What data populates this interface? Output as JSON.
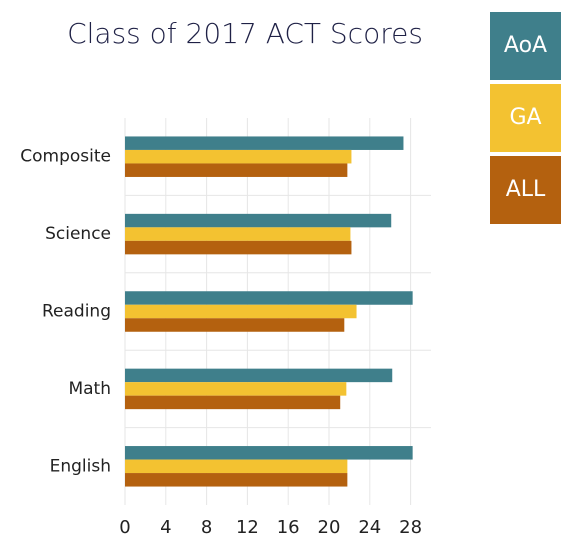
{
  "chart_data": {
    "type": "barh",
    "title": "Class of 2017 ACT Scores",
    "categories": [
      "Composite",
      "Science",
      "Reading",
      "Math",
      "English"
    ],
    "series": [
      {
        "name": "AoA",
        "color": "#3f7f8b",
        "values": [
          27.3,
          26.1,
          28.2,
          26.2,
          28.2
        ]
      },
      {
        "name": "GA",
        "color": "#f3c231",
        "values": [
          22.2,
          22.1,
          22.7,
          21.7,
          21.8
        ]
      },
      {
        "name": "ALL",
        "color": "#b4610f",
        "values": [
          21.8,
          22.2,
          21.5,
          21.1,
          21.8
        ]
      }
    ],
    "xlim": [
      0,
      30
    ],
    "xticks": [
      0,
      4,
      8,
      12,
      16,
      20,
      24,
      28
    ],
    "grid": true,
    "legend": "upper right"
  }
}
